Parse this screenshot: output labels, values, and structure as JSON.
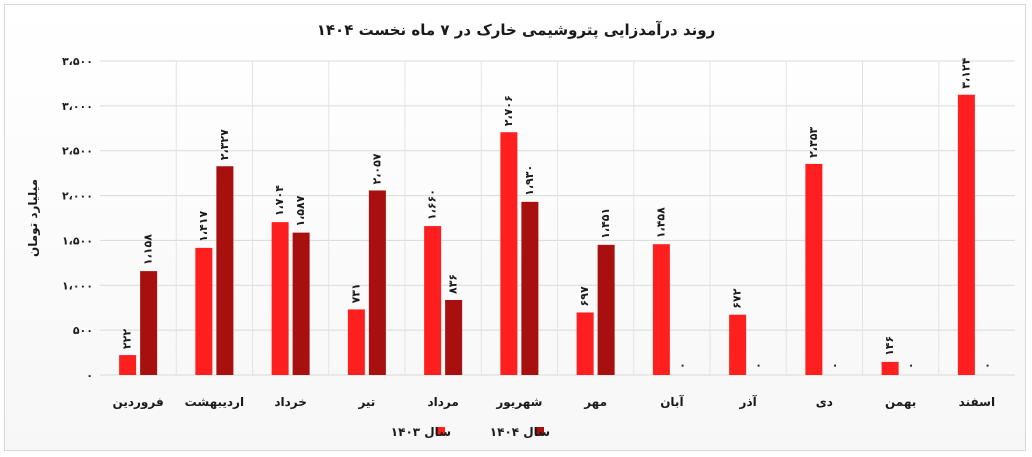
{
  "chart_data": {
    "type": "bar",
    "title": "روند درآمدزایی پتروشیمی خارک در ۷ ماه نخست ۱۴۰۴",
    "xlabel": "",
    "ylabel": "میلیارد تومان",
    "ylim": [
      0,
      3500
    ],
    "yticks": [
      0,
      500,
      1000,
      1500,
      2000,
      2500,
      3000,
      3500
    ],
    "ytick_labels": [
      "۰",
      "۵۰۰",
      "۱،۰۰۰",
      "۱،۵۰۰",
      "۲،۰۰۰",
      "۲،۵۰۰",
      "۳،۰۰۰",
      "۳،۵۰۰"
    ],
    "grid": true,
    "legend_position": "bottom",
    "categories": [
      "فروردین",
      "اردیبهشت",
      "خرداد",
      "تیر",
      "مرداد",
      "شهریور",
      "مهر",
      "آبان",
      "آذر",
      "دی",
      "بهمن",
      "اسفند"
    ],
    "series": [
      {
        "name": "سال ۱۴۰۳",
        "color": "#ff1f1f",
        "values": [
          222,
          1417,
          1704,
          731,
          1660,
          2706,
          697,
          1458,
          672,
          2353,
          146,
          3124
        ],
        "labels": [
          "۲۲۲",
          "۱،۴۱۷",
          "۱،۷۰۴",
          "۷۳۱",
          "۱،۶۶۰",
          "۲،۷۰۶",
          "۶۹۷",
          "۱،۴۵۸",
          "۶۷۲",
          "۲،۳۵۳",
          "۱۴۶",
          "۳،۱۲۴"
        ]
      },
      {
        "name": "سال ۱۴۰۴",
        "color": "#a80f0f",
        "values": [
          1158,
          2327,
          1587,
          2057,
          836,
          1930,
          1451,
          0,
          0,
          0,
          0,
          0
        ],
        "labels": [
          "۱،۱۵۸",
          "۲،۳۲۷",
          "۱،۵۸۷",
          "۲،۰۵۷",
          "۸۳۶",
          "۱،۹۳۰",
          "۱،۴۵۱",
          "۰",
          "۰",
          "۰",
          "۰",
          "۰"
        ]
      }
    ]
  }
}
